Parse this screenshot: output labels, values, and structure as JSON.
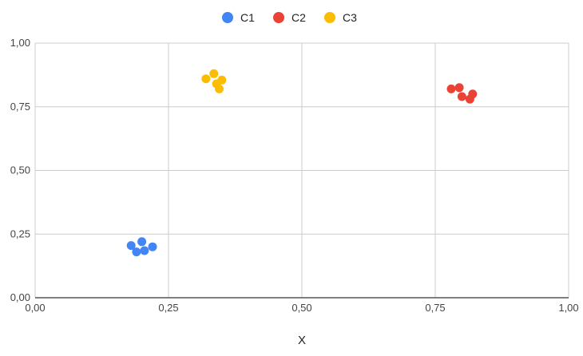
{
  "chart_data": {
    "type": "scatter",
    "title": "",
    "xlabel": "X",
    "ylabel": "",
    "xlim": [
      0,
      1
    ],
    "ylim": [
      0,
      1
    ],
    "x_ticks": [
      "0,00",
      "0,25",
      "0,50",
      "0,75",
      "1,00"
    ],
    "y_ticks": [
      "0,00",
      "0,25",
      "0,50",
      "0,75",
      "1,00"
    ],
    "grid": true,
    "legend_position": "top",
    "series": [
      {
        "name": "C1",
        "color": "#4285F4",
        "points": [
          {
            "x": 0.18,
            "y": 0.205
          },
          {
            "x": 0.19,
            "y": 0.18
          },
          {
            "x": 0.2,
            "y": 0.22
          },
          {
            "x": 0.205,
            "y": 0.185
          },
          {
            "x": 0.22,
            "y": 0.2
          }
        ]
      },
      {
        "name": "C2",
        "color": "#EA4335",
        "points": [
          {
            "x": 0.78,
            "y": 0.82
          },
          {
            "x": 0.795,
            "y": 0.825
          },
          {
            "x": 0.8,
            "y": 0.79
          },
          {
            "x": 0.815,
            "y": 0.78
          },
          {
            "x": 0.82,
            "y": 0.8
          }
        ]
      },
      {
        "name": "C3",
        "color": "#FBBC04",
        "points": [
          {
            "x": 0.32,
            "y": 0.86
          },
          {
            "x": 0.335,
            "y": 0.88
          },
          {
            "x": 0.34,
            "y": 0.84
          },
          {
            "x": 0.345,
            "y": 0.82
          },
          {
            "x": 0.35,
            "y": 0.855
          }
        ]
      }
    ]
  }
}
